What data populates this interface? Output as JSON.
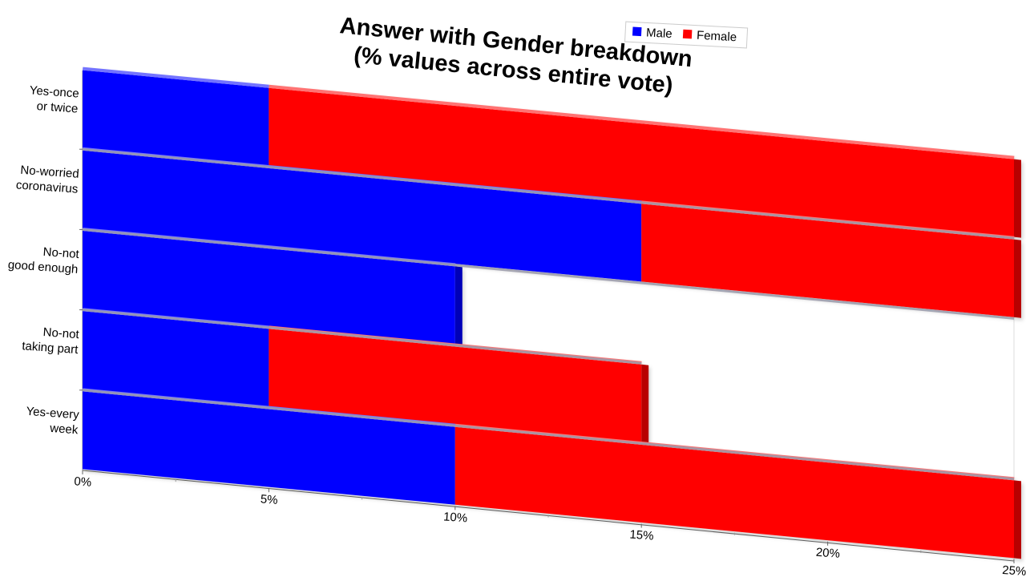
{
  "chart_data": {
    "type": "bar",
    "stacked": true,
    "orientation": "horizontal",
    "three_d": true,
    "title": "Answer with Gender breakdown\n(% values across entire vote)",
    "categories": [
      "Yes-once or twice",
      "No-worried coronavirus",
      "No-not good enough",
      "No-not taking part",
      "Yes-every week"
    ],
    "category_lines": [
      [
        "Yes-once",
        "or twice"
      ],
      [
        "No-worried",
        "coronavirus"
      ],
      [
        "No-not",
        "good enough"
      ],
      [
        "No-not",
        "taking part"
      ],
      [
        "Yes-every",
        "week"
      ]
    ],
    "series": [
      {
        "name": "Male",
        "color": "#0000ff",
        "values": [
          5,
          15,
          10,
          5,
          10
        ]
      },
      {
        "name": "Female",
        "color": "#ff0000",
        "values": [
          20,
          10,
          0,
          10,
          15
        ]
      }
    ],
    "x_ticks": [
      "0%",
      "5%",
      "10%",
      "15%",
      "20%",
      "25%"
    ],
    "xlim": [
      0,
      25
    ],
    "legend_position": "top-right",
    "grid": false
  }
}
